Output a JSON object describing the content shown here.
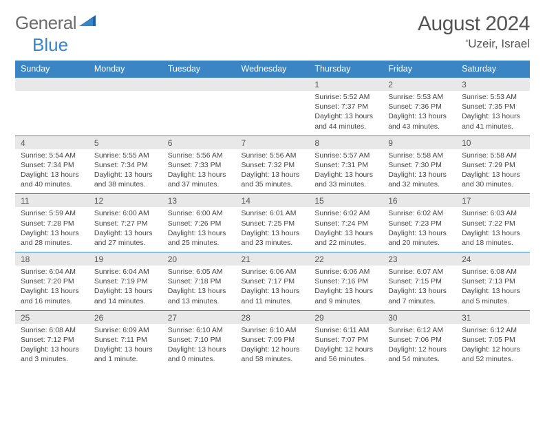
{
  "logo": {
    "word1": "General",
    "word2": "Blue"
  },
  "title": "August 2024",
  "location": "'Uzeir, Israel",
  "colors": {
    "header_bg": "#3b85c4",
    "header_text": "#ffffff",
    "daynum_bg": "#e8e8e8",
    "border": "#3b85c4",
    "text": "#444444",
    "title_text": "#555555",
    "logo_text": "#6c6c6c"
  },
  "fonts": {
    "title_size": 30,
    "location_size": 17,
    "dayhead_size": 12.5,
    "daynum_size": 12,
    "info_size": 10.5
  },
  "days_of_week": [
    "Sunday",
    "Monday",
    "Tuesday",
    "Wednesday",
    "Thursday",
    "Friday",
    "Saturday"
  ],
  "weeks": [
    [
      null,
      null,
      null,
      null,
      {
        "n": "1",
        "sunrise": "5:52 AM",
        "sunset": "7:37 PM",
        "daylight": "13 hours and 44 minutes."
      },
      {
        "n": "2",
        "sunrise": "5:53 AM",
        "sunset": "7:36 PM",
        "daylight": "13 hours and 43 minutes."
      },
      {
        "n": "3",
        "sunrise": "5:53 AM",
        "sunset": "7:35 PM",
        "daylight": "13 hours and 41 minutes."
      }
    ],
    [
      {
        "n": "4",
        "sunrise": "5:54 AM",
        "sunset": "7:34 PM",
        "daylight": "13 hours and 40 minutes."
      },
      {
        "n": "5",
        "sunrise": "5:55 AM",
        "sunset": "7:34 PM",
        "daylight": "13 hours and 38 minutes."
      },
      {
        "n": "6",
        "sunrise": "5:56 AM",
        "sunset": "7:33 PM",
        "daylight": "13 hours and 37 minutes."
      },
      {
        "n": "7",
        "sunrise": "5:56 AM",
        "sunset": "7:32 PM",
        "daylight": "13 hours and 35 minutes."
      },
      {
        "n": "8",
        "sunrise": "5:57 AM",
        "sunset": "7:31 PM",
        "daylight": "13 hours and 33 minutes."
      },
      {
        "n": "9",
        "sunrise": "5:58 AM",
        "sunset": "7:30 PM",
        "daylight": "13 hours and 32 minutes."
      },
      {
        "n": "10",
        "sunrise": "5:58 AM",
        "sunset": "7:29 PM",
        "daylight": "13 hours and 30 minutes."
      }
    ],
    [
      {
        "n": "11",
        "sunrise": "5:59 AM",
        "sunset": "7:28 PM",
        "daylight": "13 hours and 28 minutes."
      },
      {
        "n": "12",
        "sunrise": "6:00 AM",
        "sunset": "7:27 PM",
        "daylight": "13 hours and 27 minutes."
      },
      {
        "n": "13",
        "sunrise": "6:00 AM",
        "sunset": "7:26 PM",
        "daylight": "13 hours and 25 minutes."
      },
      {
        "n": "14",
        "sunrise": "6:01 AM",
        "sunset": "7:25 PM",
        "daylight": "13 hours and 23 minutes."
      },
      {
        "n": "15",
        "sunrise": "6:02 AM",
        "sunset": "7:24 PM",
        "daylight": "13 hours and 22 minutes."
      },
      {
        "n": "16",
        "sunrise": "6:02 AM",
        "sunset": "7:23 PM",
        "daylight": "13 hours and 20 minutes."
      },
      {
        "n": "17",
        "sunrise": "6:03 AM",
        "sunset": "7:22 PM",
        "daylight": "13 hours and 18 minutes."
      }
    ],
    [
      {
        "n": "18",
        "sunrise": "6:04 AM",
        "sunset": "7:20 PM",
        "daylight": "13 hours and 16 minutes."
      },
      {
        "n": "19",
        "sunrise": "6:04 AM",
        "sunset": "7:19 PM",
        "daylight": "13 hours and 14 minutes."
      },
      {
        "n": "20",
        "sunrise": "6:05 AM",
        "sunset": "7:18 PM",
        "daylight": "13 hours and 13 minutes."
      },
      {
        "n": "21",
        "sunrise": "6:06 AM",
        "sunset": "7:17 PM",
        "daylight": "13 hours and 11 minutes."
      },
      {
        "n": "22",
        "sunrise": "6:06 AM",
        "sunset": "7:16 PM",
        "daylight": "13 hours and 9 minutes."
      },
      {
        "n": "23",
        "sunrise": "6:07 AM",
        "sunset": "7:15 PM",
        "daylight": "13 hours and 7 minutes."
      },
      {
        "n": "24",
        "sunrise": "6:08 AM",
        "sunset": "7:13 PM",
        "daylight": "13 hours and 5 minutes."
      }
    ],
    [
      {
        "n": "25",
        "sunrise": "6:08 AM",
        "sunset": "7:12 PM",
        "daylight": "13 hours and 3 minutes."
      },
      {
        "n": "26",
        "sunrise": "6:09 AM",
        "sunset": "7:11 PM",
        "daylight": "13 hours and 1 minute."
      },
      {
        "n": "27",
        "sunrise": "6:10 AM",
        "sunset": "7:10 PM",
        "daylight": "13 hours and 0 minutes."
      },
      {
        "n": "28",
        "sunrise": "6:10 AM",
        "sunset": "7:09 PM",
        "daylight": "12 hours and 58 minutes."
      },
      {
        "n": "29",
        "sunrise": "6:11 AM",
        "sunset": "7:07 PM",
        "daylight": "12 hours and 56 minutes."
      },
      {
        "n": "30",
        "sunrise": "6:12 AM",
        "sunset": "7:06 PM",
        "daylight": "12 hours and 54 minutes."
      },
      {
        "n": "31",
        "sunrise": "6:12 AM",
        "sunset": "7:05 PM",
        "daylight": "12 hours and 52 minutes."
      }
    ]
  ]
}
